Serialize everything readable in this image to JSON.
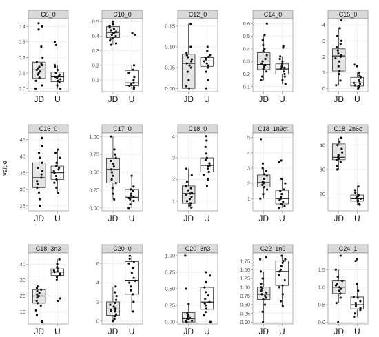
{
  "chart_data": {
    "type": "box",
    "ylabel": "value",
    "categories": [
      "JD",
      "U"
    ],
    "facet_colors": {
      "strip": "#d9d9d9",
      "panel_border": "#7f7f7f",
      "grid": "#e6e6e6",
      "box_fill_JD": "#e5e5e5",
      "box_fill_U": "#ffffff",
      "point": "#111111"
    },
    "panels": [
      {
        "title": "C8_0",
        "yticks": [
          "0.0",
          "0.1",
          "0.2",
          "0.3",
          "0.4"
        ],
        "tick_values": [
          0,
          0.1,
          0.2,
          0.3,
          0.4
        ],
        "ylim": [
          -0.02,
          0.45
        ],
        "boxes": [
          {
            "q1": 0.065,
            "median": 0.12,
            "q3": 0.17,
            "whisker_low": 0.0,
            "whisker_high": 0.27
          },
          {
            "q1": 0.045,
            "median": 0.075,
            "q3": 0.105,
            "whisker_low": 0.0,
            "whisker_high": 0.15
          }
        ],
        "points": [
          [
            0.0,
            0.02,
            0.05,
            0.07,
            0.09,
            0.1,
            0.11,
            0.12,
            0.13,
            0.14,
            0.15,
            0.16,
            0.17,
            0.2,
            0.27,
            0.38,
            0.4,
            0.42
          ],
          [
            0.0,
            0.02,
            0.04,
            0.05,
            0.06,
            0.07,
            0.075,
            0.08,
            0.09,
            0.1,
            0.12,
            0.14,
            0.15,
            0.28,
            0.3
          ]
        ]
      },
      {
        "title": "C10_0",
        "yticks": [
          "0.1",
          "0.2",
          "0.3",
          "0.4",
          "0.5"
        ],
        "tick_values": [
          0.1,
          0.2,
          0.3,
          0.4,
          0.5
        ],
        "ylim": [
          0.02,
          0.52
        ],
        "boxes": [
          {
            "q1": 0.39,
            "median": 0.425,
            "q3": 0.465,
            "whisker_low": 0.34,
            "whisker_high": 0.5
          },
          {
            "q1": 0.06,
            "median": 0.08,
            "q3": 0.165,
            "whisker_low": 0.04,
            "whisker_high": 0.2
          }
        ],
        "points": [
          [
            0.34,
            0.35,
            0.37,
            0.38,
            0.39,
            0.4,
            0.41,
            0.42,
            0.425,
            0.43,
            0.44,
            0.45,
            0.46,
            0.47,
            0.48,
            0.5
          ],
          [
            0.04,
            0.05,
            0.06,
            0.07,
            0.08,
            0.1,
            0.12,
            0.15,
            0.17,
            0.2,
            0.41,
            0.42
          ]
        ]
      },
      {
        "title": "C12_0",
        "yticks": [
          "0.00",
          "0.05",
          "0.10",
          "0.15"
        ],
        "tick_values": [
          0,
          0.05,
          0.1,
          0.15
        ],
        "ylim": [
          -0.008,
          0.168
        ],
        "boxes": [
          {
            "q1": 0.0,
            "median": 0.06,
            "q3": 0.082,
            "whisker_low": 0.0,
            "whisker_high": 0.155
          },
          {
            "q1": 0.053,
            "median": 0.066,
            "q3": 0.074,
            "whisker_low": 0.0,
            "whisker_high": 0.1
          }
        ],
        "points": [
          [
            0.0,
            0.005,
            0.02,
            0.04,
            0.05,
            0.055,
            0.06,
            0.065,
            0.07,
            0.075,
            0.08,
            0.085,
            0.1,
            0.155
          ],
          [
            0.0,
            0.02,
            0.04,
            0.05,
            0.055,
            0.06,
            0.065,
            0.07,
            0.073,
            0.076,
            0.08,
            0.09,
            0.1
          ]
        ]
      },
      {
        "title": "C14_0",
        "yticks": [
          "0.1",
          "0.2",
          "0.3",
          "0.4",
          "0.5",
          "0.6"
        ],
        "tick_values": [
          0.1,
          0.2,
          0.3,
          0.4,
          0.5,
          0.6
        ],
        "ylim": [
          0.06,
          0.64
        ],
        "boxes": [
          {
            "q1": 0.235,
            "median": 0.275,
            "q3": 0.37,
            "whisker_low": 0.15,
            "whisker_high": 0.51
          },
          {
            "q1": 0.2,
            "median": 0.24,
            "q3": 0.28,
            "whisker_low": 0.12,
            "whisker_high": 0.34
          }
        ],
        "points": [
          [
            0.15,
            0.18,
            0.22,
            0.24,
            0.26,
            0.27,
            0.28,
            0.3,
            0.32,
            0.35,
            0.38,
            0.4,
            0.43,
            0.47,
            0.51,
            0.6
          ],
          [
            0.12,
            0.15,
            0.18,
            0.2,
            0.22,
            0.24,
            0.25,
            0.26,
            0.28,
            0.3,
            0.32,
            0.34,
            0.41,
            0.42
          ]
        ]
      },
      {
        "title": "C15_0",
        "yticks": [
          "0",
          "1",
          "2",
          "3",
          "4"
        ],
        "tick_values": [
          0,
          1,
          2,
          3,
          4
        ],
        "ylim": [
          -0.2,
          4.4
        ],
        "boxes": [
          {
            "q1": 1.1,
            "median": 2.05,
            "q3": 2.5,
            "whisker_low": 0.2,
            "whisker_high": 3.8
          },
          {
            "q1": 0.15,
            "median": 0.35,
            "q3": 0.7,
            "whisker_low": 0.0,
            "whisker_high": 1.0
          }
        ],
        "points": [
          [
            0.2,
            0.5,
            0.9,
            1.1,
            1.4,
            1.7,
            1.9,
            2.0,
            2.1,
            2.2,
            2.4,
            2.6,
            2.8,
            3.0,
            3.3,
            3.8,
            4.3
          ],
          [
            0.0,
            0.1,
            0.15,
            0.2,
            0.3,
            0.35,
            0.45,
            0.55,
            0.7,
            0.8,
            1.0,
            1.4,
            1.5
          ]
        ]
      },
      {
        "title": "C16_0",
        "yticks": [
          "25",
          "30",
          "35",
          "40",
          "45"
        ],
        "tick_values": [
          25,
          30,
          35,
          40,
          45
        ],
        "ylim": [
          23.5,
          47
        ],
        "boxes": [
          {
            "q1": 30.5,
            "median": 33.5,
            "q3": 38.0,
            "whisker_low": 25.0,
            "whisker_high": 45.5
          },
          {
            "q1": 33.0,
            "median": 35.0,
            "q3": 37.0,
            "whisker_low": 29.0,
            "whisker_high": 42.0
          }
        ],
        "points": [
          [
            25.0,
            27.0,
            29.0,
            30.5,
            31.5,
            32.5,
            33.5,
            34.5,
            35.5,
            36.5,
            38.0,
            39.5,
            41.0,
            43.0,
            45.5
          ],
          [
            29.0,
            30.5,
            32.0,
            33.0,
            34.0,
            35.0,
            35.5,
            36.0,
            36.5,
            37.0,
            38.0,
            39.5,
            41.0,
            42.0
          ]
        ]
      },
      {
        "title": "C17_0",
        "yticks": [
          "0.00",
          "0.25",
          "0.50",
          "0.75",
          "1.00"
        ],
        "tick_values": [
          0,
          0.25,
          0.5,
          0.75,
          1.0
        ],
        "ylim": [
          -0.04,
          1.05
        ],
        "boxes": [
          {
            "q1": 0.35,
            "median": 0.54,
            "q3": 0.7,
            "whisker_low": 0.12,
            "whisker_high": 1.0
          },
          {
            "q1": 0.1,
            "median": 0.15,
            "q3": 0.26,
            "whisker_low": 0.0,
            "whisker_high": 0.45
          }
        ],
        "points": [
          [
            0.12,
            0.2,
            0.28,
            0.35,
            0.4,
            0.45,
            0.5,
            0.54,
            0.58,
            0.62,
            0.66,
            0.7,
            0.75,
            0.82,
            1.0
          ],
          [
            0.0,
            0.05,
            0.1,
            0.12,
            0.14,
            0.15,
            0.17,
            0.2,
            0.24,
            0.26,
            0.3,
            0.45
          ]
        ]
      },
      {
        "title": "C18_0",
        "yticks": [
          "1",
          "2",
          "3",
          "4"
        ],
        "tick_values": [
          1,
          2,
          3,
          4
        ],
        "ylim": [
          0.55,
          4.15
        ],
        "boxes": [
          {
            "q1": 0.9,
            "median": 1.35,
            "q3": 1.7,
            "whisker_low": 0.7,
            "whisker_high": 2.5
          },
          {
            "q1": 2.35,
            "median": 2.65,
            "q3": 3.0,
            "whisker_low": 1.7,
            "whisker_high": 4.0
          }
        ],
        "points": [
          [
            0.7,
            0.8,
            0.9,
            1.0,
            1.1,
            1.2,
            1.3,
            1.35,
            1.4,
            1.5,
            1.6,
            1.7,
            1.9,
            2.2,
            2.5
          ],
          [
            1.7,
            2.0,
            2.2,
            2.35,
            2.5,
            2.6,
            2.65,
            2.75,
            2.9,
            3.0,
            3.2,
            3.5,
            3.8,
            4.0
          ]
        ]
      },
      {
        "title": "C18_1n9ct",
        "yticks": [
          "1",
          "2",
          "3",
          "4",
          "5"
        ],
        "tick_values": [
          1,
          2,
          3,
          4,
          5
        ],
        "ylim": [
          0.2,
          5.3
        ],
        "boxes": [
          {
            "q1": 1.75,
            "median": 2.05,
            "q3": 2.55,
            "whisker_low": 1.0,
            "whisker_high": 3.0
          },
          {
            "q1": 0.65,
            "median": 1.0,
            "q3": 1.55,
            "whisker_low": 0.4,
            "whisker_high": 2.3
          }
        ],
        "points": [
          [
            1.0,
            1.3,
            1.6,
            1.75,
            1.9,
            2.0,
            2.05,
            2.1,
            2.3,
            2.5,
            2.6,
            2.8,
            3.0,
            3.3,
            4.9
          ],
          [
            0.4,
            0.5,
            0.65,
            0.8,
            0.9,
            1.0,
            1.1,
            1.3,
            1.5,
            1.6,
            2.0,
            2.3,
            3.4,
            3.5
          ]
        ]
      },
      {
        "title": "C18_2n6c",
        "yticks": [
          "20",
          "30",
          "40"
        ],
        "tick_values": [
          20,
          30,
          40
        ],
        "ylim": [
          13,
          45
        ],
        "boxes": [
          {
            "q1": 34.0,
            "median": 35.0,
            "q3": 40.5,
            "whisker_low": 30.0,
            "whisker_high": 43.0
          },
          {
            "q1": 17.0,
            "median": 18.0,
            "q3": 19.5,
            "whisker_low": 15.5,
            "whisker_high": 23.0
          }
        ],
        "points": [
          [
            30.0,
            31.5,
            33.0,
            34.0,
            34.5,
            35.0,
            35.5,
            36.0,
            37.0,
            38.5,
            40.0,
            41.5,
            43.0
          ],
          [
            15.5,
            16.0,
            17.0,
            17.5,
            18.0,
            18.5,
            19.0,
            19.5,
            20.5,
            21.5,
            23.0
          ]
        ]
      },
      {
        "title": "C18_3n3",
        "yticks": [
          "10",
          "20",
          "30",
          "40"
        ],
        "tick_values": [
          10,
          20,
          30,
          40
        ],
        "ylim": [
          2.5,
          47
        ],
        "boxes": [
          {
            "q1": 15.5,
            "median": 20.0,
            "q3": 24.0,
            "whisker_low": 4.0,
            "whisker_high": 26.0
          },
          {
            "q1": 33.0,
            "median": 35.0,
            "q3": 37.0,
            "whisker_low": 30.0,
            "whisker_high": 43.0
          }
        ],
        "points": [
          [
            4.0,
            8.0,
            11.0,
            14.0,
            15.5,
            17.0,
            19.0,
            20.0,
            21.0,
            22.0,
            23.0,
            24.0,
            25.0,
            26.0
          ],
          [
            17.0,
            18.5,
            30.0,
            32.0,
            33.0,
            34.0,
            35.0,
            35.5,
            36.0,
            37.0,
            38.0,
            40.0,
            43.0
          ]
        ]
      },
      {
        "title": "C20_0",
        "yticks": [
          "0",
          "2",
          "4",
          "6"
        ],
        "tick_values": [
          0,
          2,
          4,
          6
        ],
        "ylim": [
          -0.3,
          7.1
        ],
        "boxes": [
          {
            "q1": 0.6,
            "median": 1.25,
            "q3": 2.0,
            "whisker_low": 0.0,
            "whisker_high": 3.6
          },
          {
            "q1": 2.8,
            "median": 4.2,
            "q3": 6.2,
            "whisker_low": 1.0,
            "whisker_high": 6.8
          }
        ],
        "points": [
          [
            0.0,
            0.2,
            0.5,
            0.7,
            1.0,
            1.1,
            1.2,
            1.3,
            1.5,
            1.7,
            1.9,
            2.2,
            2.6,
            3.0,
            3.6
          ],
          [
            1.0,
            2.0,
            2.8,
            3.2,
            3.6,
            4.0,
            4.2,
            4.5,
            5.0,
            5.5,
            6.0,
            6.2,
            6.5,
            6.8
          ]
        ]
      },
      {
        "title": "C20_3n3",
        "yticks": [
          "0.00",
          "0.25",
          "0.50",
          "0.75",
          "1.00"
        ],
        "tick_values": [
          0,
          0.25,
          0.5,
          0.75,
          1.0
        ],
        "ylim": [
          -0.03,
          1.04
        ],
        "boxes": [
          {
            "q1": 0.0,
            "median": 0.05,
            "q3": 0.14,
            "whisker_low": 0.0,
            "whisker_high": 0.27
          },
          {
            "q1": 0.19,
            "median": 0.3,
            "q3": 0.52,
            "whisker_low": 0.0,
            "whisker_high": 0.75
          }
        ],
        "points": [
          [
            0.0,
            0.01,
            0.02,
            0.04,
            0.05,
            0.06,
            0.08,
            0.1,
            0.14,
            0.27,
            0.5,
            1.0
          ],
          [
            0.0,
            0.1,
            0.15,
            0.2,
            0.25,
            0.28,
            0.3,
            0.35,
            0.4,
            0.45,
            0.52,
            0.6,
            0.7,
            0.75
          ]
        ]
      },
      {
        "title": "C22_1n9",
        "yticks": [
          "0.00",
          "0.25",
          "0.50",
          "0.75",
          "1.00",
          "1.25",
          "1.50",
          "1.75"
        ],
        "tick_values": [
          0,
          0.25,
          0.5,
          0.75,
          1.0,
          1.25,
          1.5,
          1.75
        ],
        "ylim": [
          -0.05,
          1.98
        ],
        "boxes": [
          {
            "q1": 0.65,
            "median": 0.8,
            "q3": 1.0,
            "whisker_low": 0.0,
            "whisker_high": 1.45
          },
          {
            "q1": 1.05,
            "median": 1.45,
            "q3": 1.75,
            "whisker_low": 0.45,
            "whisker_high": 1.9
          }
        ],
        "points": [
          [
            0.0,
            0.3,
            0.5,
            0.65,
            0.7,
            0.75,
            0.8,
            0.85,
            0.9,
            0.95,
            1.0,
            1.1,
            1.25,
            1.45,
            1.8,
            1.85
          ],
          [
            0.45,
            0.6,
            0.8,
            1.0,
            1.05,
            1.2,
            1.35,
            1.45,
            1.5,
            1.6,
            1.7,
            1.75,
            1.8,
            1.9
          ]
        ]
      },
      {
        "title": "C24_1",
        "yticks": [
          "0.0",
          "0.5",
          "1.0",
          "1.5"
        ],
        "tick_values": [
          0,
          0.5,
          1.0,
          1.5
        ],
        "ylim": [
          -0.05,
          1.98
        ],
        "boxes": [
          {
            "q1": 0.82,
            "median": 1.0,
            "q3": 1.18,
            "whisker_low": 0.55,
            "whisker_high": 1.5
          },
          {
            "q1": 0.38,
            "median": 0.5,
            "q3": 0.72,
            "whisker_low": 0.15,
            "whisker_high": 1.1
          }
        ],
        "points": [
          [
            0.0,
            0.55,
            0.7,
            0.82,
            0.9,
            0.95,
            1.0,
            1.05,
            1.1,
            1.18,
            1.3,
            1.5,
            1.9
          ],
          [
            0.15,
            0.25,
            0.35,
            0.4,
            0.45,
            0.5,
            0.55,
            0.6,
            0.7,
            0.72,
            0.9,
            1.1,
            1.75,
            1.8
          ]
        ]
      }
    ]
  }
}
